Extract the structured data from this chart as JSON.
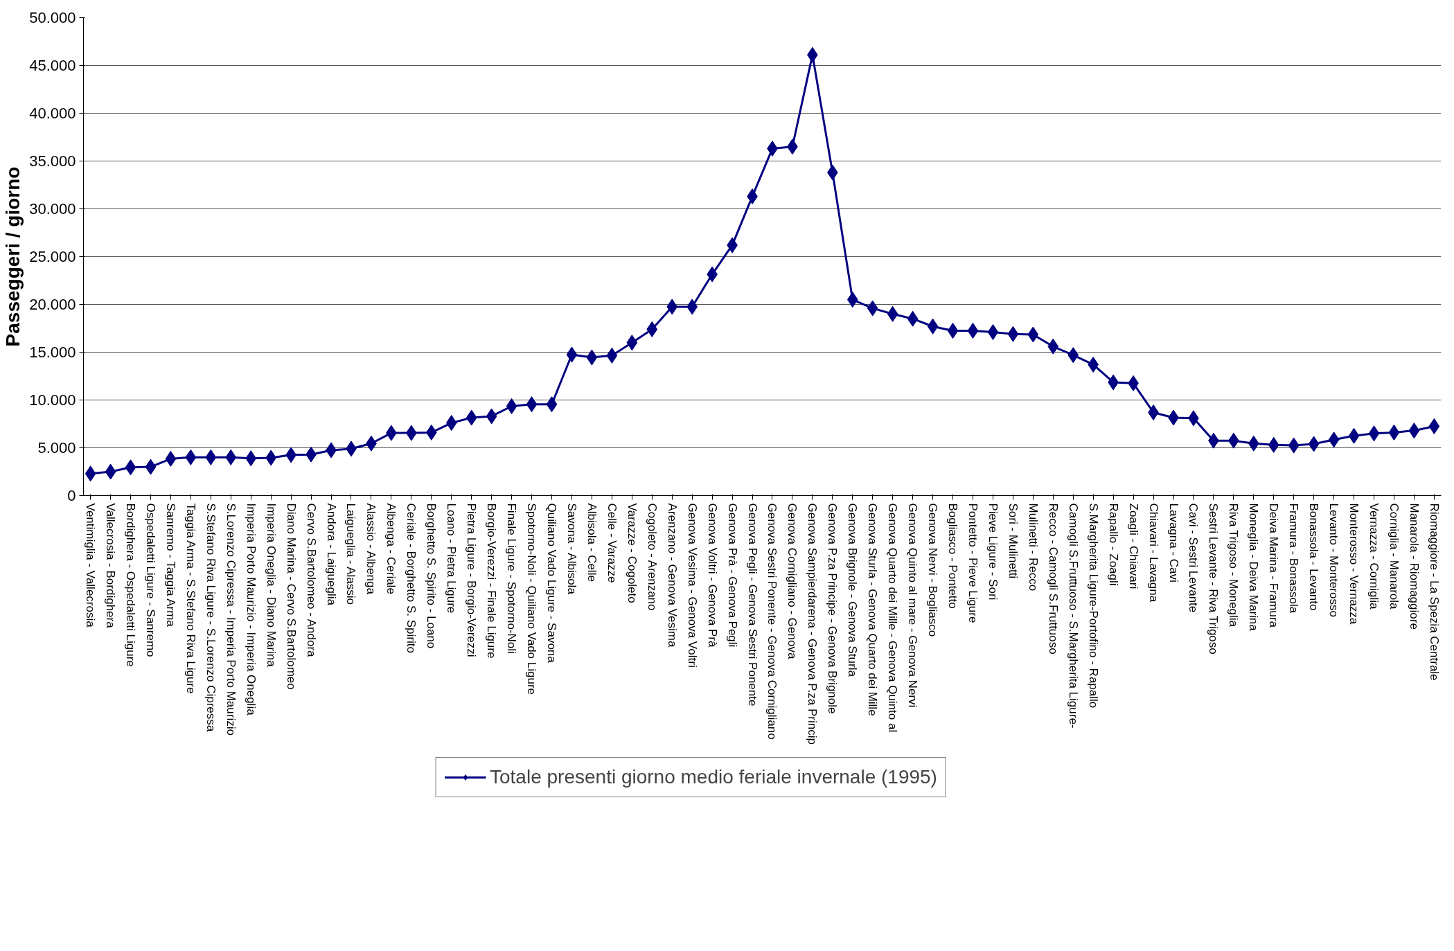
{
  "chart_data": {
    "type": "line",
    "ylabel": "Passeggeri / giorno",
    "categories": [
      "Ventimiglia - Vallecrosia",
      "Vallecrosia - Bordighera",
      "Bordighera - Ospedaletti Ligure",
      "Ospedaletti Ligure - Sanremo",
      "Sanremo - Taggia Arma",
      "Taggia Arma - S.Stefano Riva Ligure",
      "S.Stefano Riva Ligure - S.Lorenzo Cipressa",
      "S.Lorenzo Cipressa - Imperia Porto Maurizio",
      "Imperia Porto Maurizio - Imperia Oneglia",
      "Imperia Oneglia - Diano Marina",
      "Diano Marina - Cervo S.Bartolomeo",
      "Cervo S.Bartolomeo - Andora",
      "Andora - Laigueglia",
      "Laigueglia - Alassio",
      "Alassio - Albenga",
      "Albenga - Ceriale",
      "Ceriale - Borghetto S. Spirito",
      "Borghetto S. Spirito - Loano",
      "Loano - Pietra Ligure",
      "Pietra Ligure - Borgio-Verezzi",
      "Borgio-Verezzi - Finale Ligure",
      "Finale Ligure - Spotorno-Noli",
      "Spotorno-Noli - Quiliano Vado Ligure",
      "Quiliano Vado Ligure - Savona",
      "Savona - Albisola",
      "Albisola - Celle",
      "Celle - Varazze",
      "Varazze - Cogoleto",
      "Cogoleto - Arenzano",
      "Arenzano - Genova Vesima",
      "Genova Vesima - Genova Voltri",
      "Genova Voltri - Genova Prà",
      "Genova Prà - Genova Pegli",
      "Genova Pegli - Genova Sestri Ponente",
      "Genova Sestri Ponente - Genova Cornigliano",
      "Genova Cornigliano - Genova",
      "Genova Sampierdarena - Genova P.za Princip",
      "Genova P.za Principe - Genova Brignole",
      "Genova Brignole - Genova Sturla",
      "Genova Sturla - Genova Quarto dei Mille",
      "Genova Quarto dei Mille - Genova Quinto al",
      "Genova Quinto al mare - Genova Nervi",
      "Genova Nervi - Bogliasco",
      "Bogliasco - Pontetto",
      "Pontetto - Pieve Ligure",
      "Pieve Ligure - Sori",
      "Sori - Mulinetti",
      "Mulinetti - Recco",
      "Recco - Camogli S.Fruttuoso",
      "Camogli S.Fruttuoso - S.Margherita Ligure-",
      "S.Margherita Ligure-Portofino - Rapallo",
      "Rapallo - Zoagli",
      "Zoagli - Chiavari",
      "Chiavari - Lavagna",
      "Lavagna - Cavi",
      "Cavi - Sestri Levante",
      "Sestri Levante - Riva Trigoso",
      "Riva Trigoso - Moneglia",
      "Moneglia - Deiva Marina",
      "Deiva Marina - Framura",
      "Framura - Bonassola",
      "Bonassola - Levanto",
      "Levanto - Monterosso",
      "Monterosso - Vernazza",
      "Vernazza - Corniglia",
      "Corniglia - Manarola",
      "Manarola - Riomaggiore",
      "Riomaggiore - La Spezia Centrale"
    ],
    "series": [
      {
        "name": "Totale presenti giorno medio feriale invernale (1995)",
        "color": "#000080",
        "values": [
          2300,
          2500,
          2950,
          3000,
          3850,
          4000,
          4000,
          4000,
          3900,
          3950,
          4250,
          4300,
          4750,
          4900,
          5450,
          6550,
          6550,
          6600,
          7600,
          8150,
          8300,
          9350,
          9550,
          9550,
          14750,
          14450,
          14650,
          16000,
          17400,
          19750,
          19750,
          23150,
          26200,
          31300,
          36300,
          36500,
          46100,
          33800,
          20500,
          19600,
          19000,
          18500,
          17700,
          17250,
          17250,
          17100,
          16900,
          16850,
          15600,
          14700,
          13700,
          11850,
          11750,
          8700,
          8150,
          8100,
          5750,
          5750,
          5450,
          5300,
          5250,
          5400,
          5850,
          6250,
          6500,
          6600,
          6800,
          7250
        ]
      }
    ],
    "ylim": [
      0,
      50000
    ],
    "yticks": [
      {
        "value": 0,
        "label": "0"
      },
      {
        "value": 5000,
        "label": "5.000"
      },
      {
        "value": 10000,
        "label": "10.000"
      },
      {
        "value": 15000,
        "label": "15.000"
      },
      {
        "value": 20000,
        "label": "20.000"
      },
      {
        "value": 25000,
        "label": "25.000"
      },
      {
        "value": 30000,
        "label": "30.000"
      },
      {
        "value": 35000,
        "label": "35.000"
      },
      {
        "value": 40000,
        "label": "40.000"
      },
      {
        "value": 45000,
        "label": "45.000"
      },
      {
        "value": 50000,
        "label": "50.000"
      }
    ],
    "grid": "y",
    "legend": "bottom",
    "marker": "diamond",
    "line_style": "solid"
  }
}
